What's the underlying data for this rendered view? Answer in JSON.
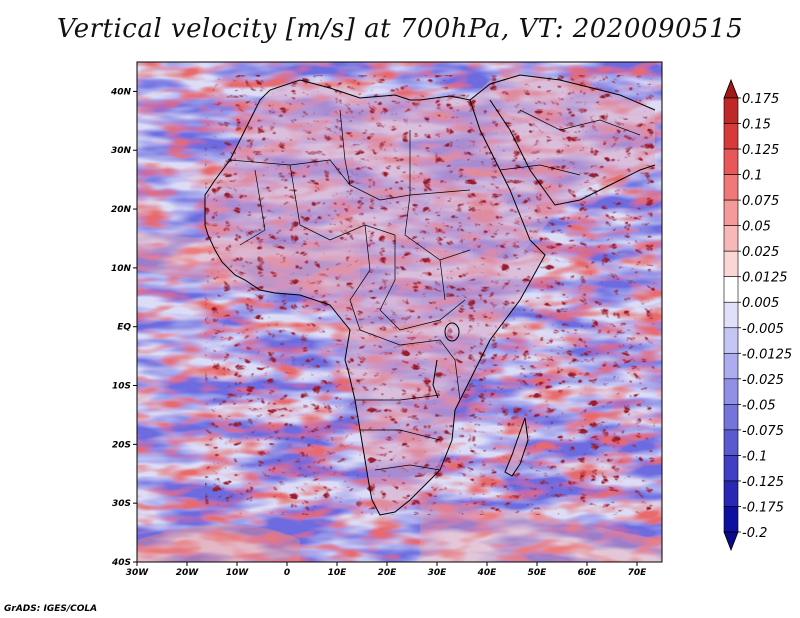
{
  "title": "Vertical velocity [m/s] at 700hPa, VT: 2020090515",
  "credit": "GrADS: IGES/COLA",
  "map": {
    "lon_range": [
      -30,
      75
    ],
    "lat_range": [
      -40,
      45
    ],
    "lon_ticks": [
      {
        "value": -30,
        "label": "30W"
      },
      {
        "value": -20,
        "label": "20W"
      },
      {
        "value": -10,
        "label": "10W"
      },
      {
        "value": 0,
        "label": "0"
      },
      {
        "value": 10,
        "label": "10E"
      },
      {
        "value": 20,
        "label": "20E"
      },
      {
        "value": 30,
        "label": "30E"
      },
      {
        "value": 40,
        "label": "40E"
      },
      {
        "value": 50,
        "label": "50E"
      },
      {
        "value": 60,
        "label": "60E"
      },
      {
        "value": 70,
        "label": "70E"
      }
    ],
    "lat_ticks": [
      {
        "value": 40,
        "label": "40N"
      },
      {
        "value": 30,
        "label": "30N"
      },
      {
        "value": 20,
        "label": "20N"
      },
      {
        "value": 10,
        "label": "10N"
      },
      {
        "value": 0,
        "label": "EQ"
      },
      {
        "value": -10,
        "label": "10S"
      },
      {
        "value": -20,
        "label": "20S"
      },
      {
        "value": -30,
        "label": "30S"
      },
      {
        "value": -40,
        "label": "40S"
      }
    ]
  },
  "colorbar": {
    "labels": [
      "0.175",
      "0.15",
      "0.125",
      "0.1",
      "0.075",
      "0.05",
      "0.025",
      "0.0125",
      "0.005",
      "-0.005",
      "-0.0125",
      "-0.025",
      "-0.05",
      "-0.075",
      "-0.1",
      "-0.125",
      "-0.175",
      "-0.2"
    ],
    "colors": [
      "#a01818",
      "#c02828",
      "#d83a3a",
      "#e85858",
      "#f07878",
      "#f49a9a",
      "#f8b8b8",
      "#fbd6d6",
      "#ffffff",
      "#e0e0fa",
      "#c6c6f4",
      "#acacee",
      "#9090e4",
      "#7474da",
      "#5a5ad0",
      "#4040c4",
      "#2828b4",
      "#1010a0",
      "#0a0a8a"
    ]
  }
}
